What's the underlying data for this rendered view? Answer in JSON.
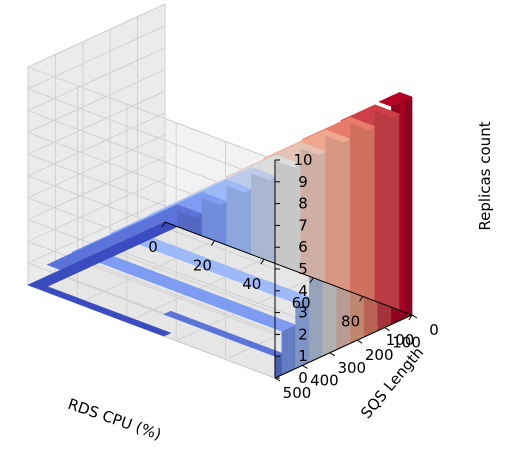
{
  "chart_data": {
    "type": "surface3d",
    "title": "",
    "xlabel": "RDS CPU (%)",
    "ylabel": "SQS Length",
    "zlabel": "Replicas count",
    "xlim": [
      0,
      100
    ],
    "ylim": [
      0,
      500
    ],
    "zlim": [
      0,
      10
    ],
    "x_ticks": [
      0,
      20,
      40,
      60,
      80,
      100
    ],
    "y_ticks": [
      0,
      100,
      200,
      300,
      400,
      500
    ],
    "z_ticks": [
      0,
      1,
      2,
      3,
      4,
      5,
      6,
      7,
      8,
      9,
      10
    ],
    "colormap": "coolwarm",
    "colormap_stops": [
      "#3b4cc0",
      "#8db0fe",
      "#dddddd",
      "#f49a7b",
      "#b40426"
    ],
    "grid": true,
    "surface_description": "Stepped surface: replicas count is an integer step function of RDS CPU and SQS Length, reaching 10 near low CPU / high queue length and 0 for high CPU with short queues",
    "x_values": [
      0,
      10,
      20,
      30,
      40,
      50,
      60,
      70,
      80,
      90,
      100
    ],
    "y_values": [
      0,
      50,
      100,
      150,
      200,
      250,
      300,
      350,
      400,
      450,
      500
    ],
    "z_values": [
      [
        0,
        1,
        2,
        3,
        4,
        5,
        6,
        7,
        8,
        9,
        10
      ],
      [
        0,
        1,
        2,
        3,
        4,
        5,
        6,
        7,
        8,
        9,
        10
      ],
      [
        0,
        1,
        2,
        3,
        4,
        5,
        6,
        7,
        8,
        9,
        9
      ],
      [
        0,
        1,
        2,
        3,
        4,
        5,
        6,
        7,
        8,
        8,
        8
      ],
      [
        0,
        1,
        2,
        3,
        4,
        5,
        6,
        7,
        7,
        7,
        7
      ],
      [
        0,
        1,
        2,
        3,
        4,
        5,
        6,
        6,
        6,
        6,
        6
      ],
      [
        0,
        1,
        2,
        3,
        4,
        5,
        5,
        5,
        5,
        5,
        5
      ],
      [
        0,
        1,
        2,
        3,
        4,
        4,
        4,
        4,
        4,
        4,
        4
      ],
      [
        0,
        1,
        2,
        3,
        3,
        3,
        3,
        3,
        3,
        3,
        3
      ],
      [
        0,
        1,
        2,
        2,
        2,
        2,
        2,
        2,
        2,
        2,
        2
      ],
      [
        0,
        0,
        0,
        0,
        0,
        0,
        1,
        1,
        1,
        1,
        1
      ]
    ]
  }
}
